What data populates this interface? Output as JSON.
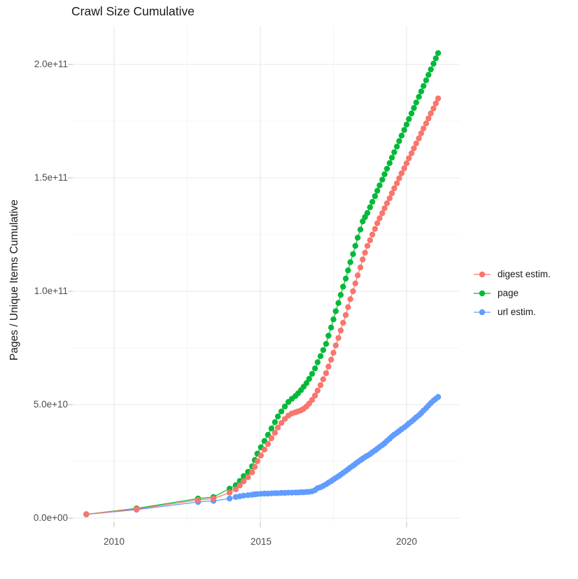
{
  "title": "Crawl Size Cumulative",
  "y_axis": {
    "label": "Pages / Unique Items Cumulative",
    "ticks": [
      "0.0e+00",
      "5.0e+10",
      "1.0e+11",
      "1.5e+11",
      "2.0e+11"
    ]
  },
  "x_axis": {
    "ticks": [
      "2010",
      "2015",
      "2020"
    ]
  },
  "legend": {
    "items": [
      {
        "label": "digest estim.",
        "color": "#F8766D"
      },
      {
        "label": "page",
        "color": "#00BA38"
      },
      {
        "label": "url estim.",
        "color": "#619CFF"
      }
    ]
  },
  "chart_data": {
    "type": "scatter",
    "title": "Crawl Size Cumulative",
    "xlabel": "",
    "ylabel": "Pages / Unique Items Cumulative",
    "value_unit": "billions (1e9) of pages / unique items, cumulative",
    "x_range_years": [
      2008.6,
      2021.6
    ],
    "y_range_billions": [
      0,
      210
    ],
    "x_major_ticks": [
      2010,
      2015,
      2020
    ],
    "x_minor_ticks": [
      2012.5,
      2017.5
    ],
    "y_major_ticks_billions": [
      0,
      50,
      100,
      150,
      200
    ],
    "y_minor_ticks_billions": [
      25,
      75,
      125,
      175
    ],
    "grid": true,
    "legend_position": "right",
    "x_years": [
      2009.05,
      2010.77,
      2012.87,
      2013.4,
      2013.95,
      2014.16,
      2014.3,
      2014.43,
      2014.58,
      2014.72,
      2014.81,
      2014.9,
      2015.02,
      2015.14,
      2015.26,
      2015.38,
      2015.5,
      2015.6,
      2015.72,
      2015.84,
      2015.96,
      2016.08,
      2016.2,
      2016.29,
      2016.39,
      2016.48,
      2016.58,
      2016.67,
      2016.77,
      2016.87,
      2016.96,
      2017.06,
      2017.15,
      2017.25,
      2017.33,
      2017.42,
      2017.5,
      2017.58,
      2017.67,
      2017.75,
      2017.83,
      2017.92,
      2018.0,
      2018.08,
      2018.17,
      2018.25,
      2018.33,
      2018.42,
      2018.5,
      2018.58,
      2018.66,
      2018.75,
      2018.83,
      2018.92,
      2019.0,
      2019.08,
      2019.17,
      2019.25,
      2019.33,
      2019.42,
      2019.5,
      2019.58,
      2019.67,
      2019.75,
      2019.83,
      2019.92,
      2020.0,
      2020.08,
      2020.17,
      2020.25,
      2020.33,
      2020.42,
      2020.5,
      2020.58,
      2020.67,
      2020.75,
      2020.83,
      2020.92,
      2021.0,
      2021.08
    ],
    "series": [
      {
        "name": "digest estim.",
        "color": "#F8766D",
        "values_billions": [
          1.7,
          4.0,
          8.0,
          8.6,
          11.2,
          12.7,
          14.4,
          16.2,
          18.0,
          20.2,
          22.6,
          25.1,
          27.6,
          30.2,
          32.7,
          35.2,
          37.6,
          39.9,
          41.9,
          43.7,
          45.2,
          46.1,
          46.6,
          47.0,
          47.5,
          48.2,
          49.2,
          50.5,
          52.1,
          54.0,
          56.2,
          58.6,
          61.2,
          63.9,
          66.8,
          69.8,
          72.9,
          76.1,
          79.4,
          82.7,
          86.1,
          89.5,
          93.0,
          96.5,
          100.0,
          103.5,
          107.0,
          110.5,
          114.0,
          117.0,
          120.0,
          122.5,
          125.0,
          127.5,
          130.0,
          132.2,
          134.4,
          136.6,
          138.8,
          141.0,
          143.2,
          145.4,
          147.6,
          149.8,
          152.0,
          154.2,
          156.4,
          158.6,
          160.8,
          163.0,
          165.2,
          167.4,
          169.6,
          171.8,
          174.0,
          176.2,
          178.4,
          180.6,
          182.8,
          185.0
        ]
      },
      {
        "name": "page",
        "color": "#00BA38",
        "values_billions": [
          1.7,
          4.3,
          8.6,
          9.3,
          13.0,
          14.5,
          16.4,
          18.5,
          20.4,
          22.8,
          25.6,
          28.4,
          31.2,
          34.0,
          36.7,
          39.5,
          42.3,
          44.8,
          47.0,
          49.2,
          51.2,
          52.6,
          53.8,
          55.0,
          56.4,
          57.9,
          59.5,
          61.4,
          63.6,
          66.0,
          68.7,
          71.4,
          74.1,
          76.8,
          80.4,
          84.0,
          87.6,
          91.2,
          94.8,
          98.4,
          102.0,
          105.6,
          109.2,
          112.8,
          116.4,
          120.0,
          123.6,
          127.2,
          130.8,
          132.7,
          134.5,
          137.0,
          139.4,
          141.9,
          144.3,
          146.7,
          149.2,
          151.6,
          154.0,
          156.5,
          158.9,
          161.3,
          163.8,
          166.2,
          168.6,
          171.1,
          173.5,
          175.9,
          178.4,
          180.8,
          183.2,
          185.7,
          188.1,
          190.5,
          193.0,
          195.4,
          197.8,
          200.3,
          202.7,
          205.0
        ]
      },
      {
        "name": "url estim.",
        "color": "#619CFF",
        "values_billions": [
          1.6,
          3.7,
          7.1,
          7.6,
          8.6,
          9.3,
          9.6,
          9.9,
          10.1,
          10.3,
          10.5,
          10.6,
          10.7,
          10.8,
          10.8,
          10.9,
          11.0,
          11.0,
          11.1,
          11.1,
          11.2,
          11.2,
          11.3,
          11.3,
          11.4,
          11.4,
          11.5,
          11.6,
          11.8,
          12.3,
          13.2,
          13.6,
          14.2,
          14.9,
          15.6,
          16.3,
          17.0,
          17.7,
          18.4,
          19.1,
          19.9,
          20.7,
          21.5,
          22.3,
          23.1,
          23.9,
          24.7,
          25.5,
          26.2,
          26.9,
          27.5,
          28.2,
          29.0,
          29.8,
          30.6,
          31.4,
          32.2,
          33.0,
          34.0,
          35.0,
          36.0,
          36.8,
          37.6,
          38.4,
          39.2,
          40.0,
          40.8,
          41.7,
          42.6,
          43.5,
          44.4,
          45.3,
          46.3,
          47.4,
          48.5,
          49.6,
          50.7,
          51.8,
          52.6,
          53.4
        ]
      }
    ]
  },
  "style_colors": {
    "grid_major": "#E8E8E8",
    "grid_minor": "#F2F2F2",
    "tick_mark": "#C6C6C6",
    "tick_label": "#4d4d4d",
    "text": "#1a1a1a",
    "background": "#ffffff"
  }
}
